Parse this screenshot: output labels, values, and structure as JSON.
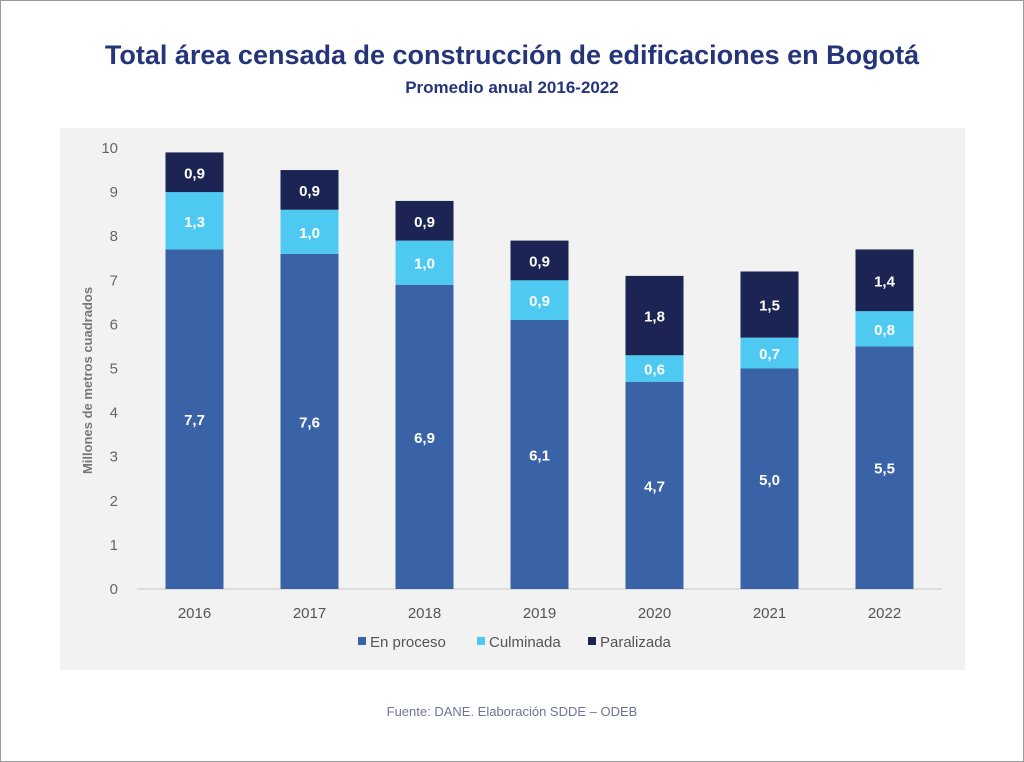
{
  "chart_data": {
    "type": "bar",
    "stacked": true,
    "title": "Total área censada de construcción de edificaciones en Bogotá",
    "subtitle": "Promedio anual 2016-2022",
    "ylabel": "Millones de metros cuadrados",
    "xlabel": "",
    "ylim": [
      0,
      10
    ],
    "yticks": [
      0,
      1,
      2,
      3,
      4,
      5,
      6,
      7,
      8,
      9,
      10
    ],
    "categories": [
      "2016",
      "2017",
      "2018",
      "2019",
      "2020",
      "2021",
      "2022"
    ],
    "series": [
      {
        "name": "En proceso",
        "color": "#3a62a7",
        "values": [
          7.7,
          7.6,
          6.9,
          6.1,
          4.7,
          5.0,
          5.5
        ],
        "labels": [
          "7,7",
          "7,6",
          "6,9",
          "6,1",
          "4,7",
          "5,0",
          "5,5"
        ]
      },
      {
        "name": "Culminada",
        "color": "#4dc9f2",
        "values": [
          1.3,
          1.0,
          1.0,
          0.9,
          0.6,
          0.7,
          0.8
        ],
        "labels": [
          "1,3",
          "1,0",
          "1,0",
          "0,9",
          "0,6",
          "0,7",
          "0,8"
        ]
      },
      {
        "name": "Paralizada",
        "color": "#1c2453",
        "values": [
          0.9,
          0.9,
          0.9,
          0.9,
          1.8,
          1.5,
          1.4
        ],
        "labels": [
          "0,9",
          "0,9",
          "0,9",
          "0,9",
          "1,8",
          "1,5",
          "1,4"
        ]
      }
    ],
    "legend_position": "bottom",
    "grid": false
  },
  "source": "Fuente: DANE. Elaboración SDDE – ODEB"
}
